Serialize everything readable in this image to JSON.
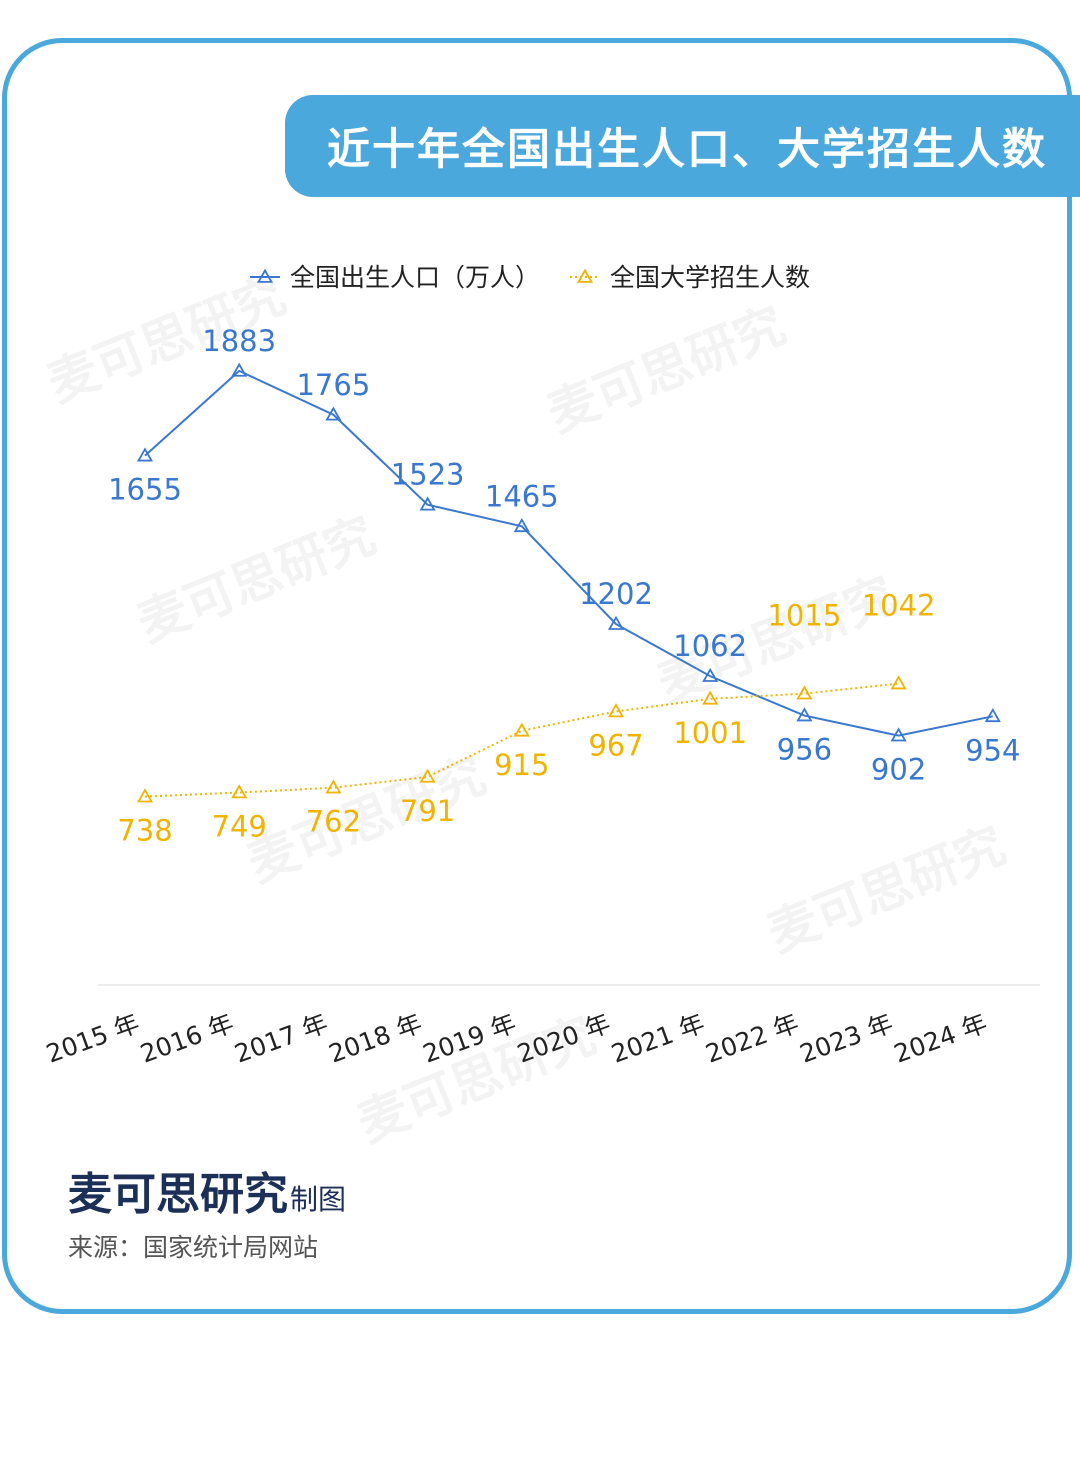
{
  "brand": {
    "name": "麦可思研究",
    "suffix": "制图",
    "source": "来源：国家统计局网站",
    "watermark": "麦可思研究"
  },
  "colors": {
    "accent": "#4aa8dc",
    "series_birth": "#3a78d0",
    "series_enroll": "#f0b400",
    "brand_text": "#1b2f57"
  },
  "chart_data": {
    "type": "line",
    "title": "近十年全国出生人口、大学招生人数",
    "categories": [
      "2015 年",
      "2016 年",
      "2017 年",
      "2018 年",
      "2019 年",
      "2020 年",
      "2021 年",
      "2022 年",
      "2023 年",
      "2024 年"
    ],
    "series": [
      {
        "name": "全国出生人口（万人）",
        "values": [
          1655,
          1883,
          1765,
          1523,
          1465,
          1202,
          1062,
          956,
          902,
          954
        ],
        "line_style": "solid",
        "marker": "triangle"
      },
      {
        "name": "全国大学招生人数",
        "values": [
          738,
          749,
          762,
          791,
          915,
          967,
          1001,
          1015,
          1042,
          null
        ],
        "line_style": "dotted",
        "marker": "triangle"
      }
    ],
    "legend_position": "top-center",
    "grid": false,
    "xlabel": "",
    "ylabel": ""
  }
}
